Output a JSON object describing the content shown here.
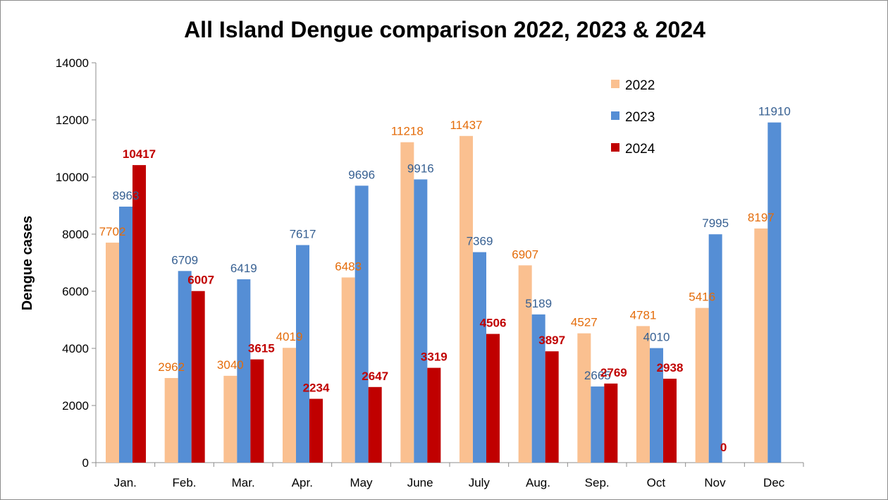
{
  "chart_data": {
    "type": "bar",
    "title": "All Island Dengue comparison 2022, 2023 & 2024",
    "xlabel": "",
    "ylabel": "Dengue cases",
    "ylim": [
      0,
      14000
    ],
    "yticks": [
      "0",
      "2000",
      "4000",
      "6000",
      "8000",
      "10000",
      "12000",
      "14000"
    ],
    "grid": false,
    "legend_position": "top-right",
    "categories": [
      "Jan.",
      "Feb.",
      "Mar.",
      "Apr.",
      "May",
      "June",
      "July",
      "Aug.",
      "Sep.",
      "Oct",
      "Nov",
      "Dec"
    ],
    "series": [
      {
        "name": "2022",
        "color": "#FAC090",
        "label_color": "#E46C0A",
        "values": [
          7702,
          2962,
          3040,
          4019,
          6483,
          11218,
          11437,
          6907,
          4527,
          4781,
          5416,
          8197
        ],
        "labels": [
          "7702",
          "2962",
          "3040",
          "4019",
          "6483",
          "11218",
          "11437",
          "6907",
          "4527",
          "4781",
          "5416",
          "8197"
        ]
      },
      {
        "name": "2023",
        "color": "#558ED5",
        "label_color": "#376092",
        "values": [
          8963,
          6709,
          6419,
          7617,
          9696,
          9916,
          7369,
          5189,
          2665,
          4010,
          7995,
          11910
        ],
        "labels": [
          "8963",
          "6709",
          "6419",
          "7617",
          "9696",
          "9916",
          "7369",
          "5189",
          "2665",
          "4010",
          "7995",
          "11910"
        ]
      },
      {
        "name": "2024",
        "color": "#C00000",
        "label_color": "#C00000",
        "values": [
          10417,
          6007,
          3615,
          2234,
          2647,
          3319,
          4506,
          3897,
          2769,
          2938,
          0,
          null
        ],
        "labels": [
          "10417",
          "6007",
          "3615",
          "2234",
          "2647",
          "3319",
          "4506",
          "3897",
          "2769",
          "2938",
          "0",
          ""
        ]
      }
    ]
  }
}
